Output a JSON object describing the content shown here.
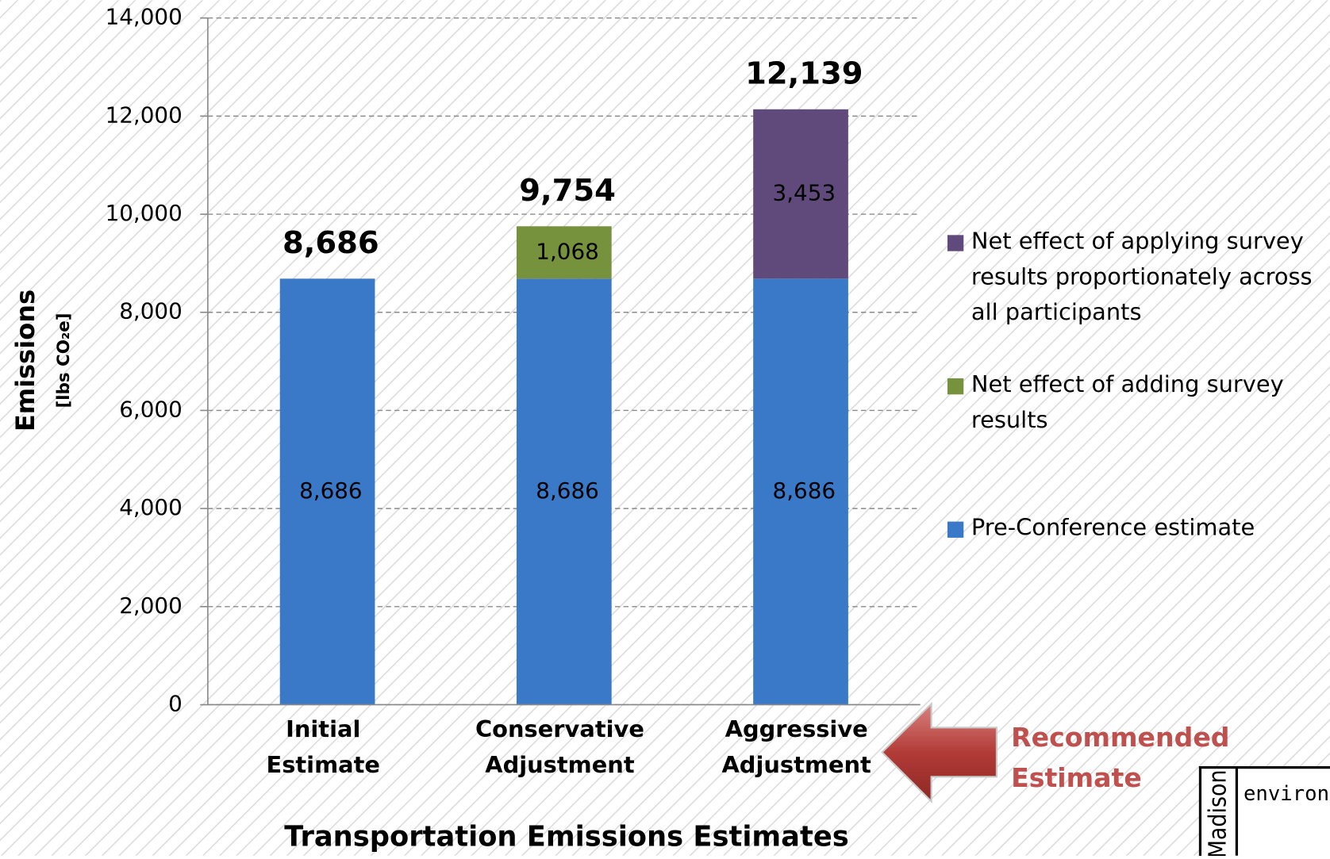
{
  "chart_data": {
    "type": "stacked-bar",
    "x_label": "Transportation Emissions Estimates",
    "y_label": "Emissions",
    "y_sublabel": "[lbs CO₂e]",
    "categories": [
      "Initial Estimate",
      "Conservative Adjustment",
      "Aggressive Adjustment"
    ],
    "series": [
      {
        "name": "Pre-Conference estimate",
        "color": "#3a78c8",
        "values": [
          8686,
          8686,
          8686
        ],
        "value_labels": [
          "8,686",
          "8,686",
          "8,686"
        ]
      },
      {
        "name": "Net effect of adding survey results",
        "color": "#76923c",
        "values": [
          null,
          1068,
          null
        ],
        "value_labels": [
          null,
          "1,068",
          null
        ]
      },
      {
        "name": "Net effect of applying survey results proportionately across all participants",
        "color": "#604a7b",
        "values": [
          null,
          null,
          3453
        ],
        "value_labels": [
          null,
          null,
          "3,453"
        ]
      }
    ],
    "totals": {
      "values": [
        8686,
        9754,
        12139
      ],
      "value_labels": [
        "8,686",
        "9,754",
        "12,139"
      ]
    },
    "ylim": [
      0,
      14000
    ],
    "yticks": [
      0,
      {
        "value": 2000,
        "label": "2,000"
      },
      {
        "value": 4000,
        "label": "4,000"
      },
      {
        "value": 6000,
        "label": "6,000"
      },
      {
        "value": 8000,
        "label": "8,000"
      },
      {
        "value": 10000,
        "label": "10,000"
      },
      {
        "value": 12000,
        "label": "12,000"
      },
      {
        "value": 14000,
        "label": "14,000"
      }
    ],
    "grid": true,
    "legend": "right",
    "annotation": {
      "text": "Recommended Estimate",
      "color": "#c0504d"
    },
    "logo": {
      "name": "Madison",
      "text": "environme"
    }
  }
}
